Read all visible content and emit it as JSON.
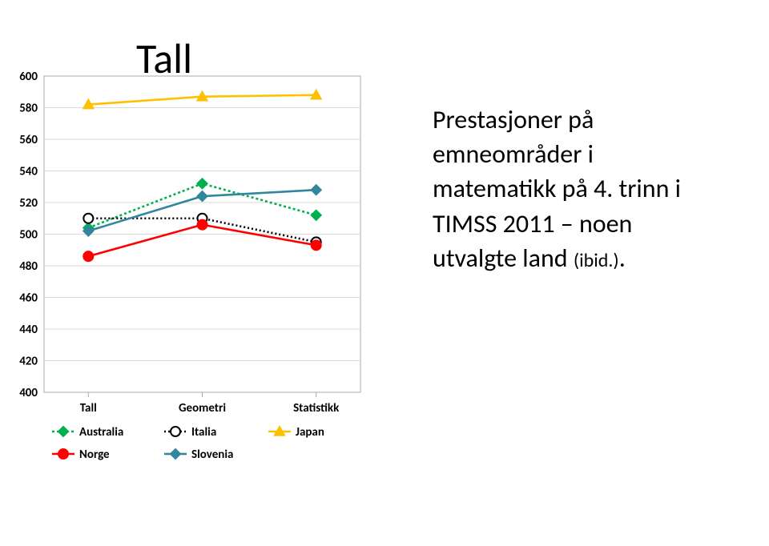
{
  "title": "Tall",
  "caption_line1": "Prestasjoner på",
  "caption_line2": "emneområder i",
  "caption_line3": "matematikk på 4. trinn i",
  "caption_line4": "TIMSS 2011 – noen",
  "caption_line5": "utvalgte land ",
  "caption_ibid": "(ibid.)",
  "caption_period": ".",
  "chart": {
    "type": "line",
    "background_color": "#ffffff",
    "plot_background_color": "#ffffff",
    "border_color": "#a9a9a9",
    "grid_color": "#d9d9d9",
    "axis_label_fontsize": 15,
    "axis_label_weight": "bold",
    "legend_fontsize": 15,
    "legend_weight": "bold",
    "categories": [
      "Tall",
      "Geometri",
      "Statistikk"
    ],
    "y": {
      "min": 400,
      "max": 600,
      "step": 20
    },
    "line_width": 2.6,
    "marker_size": 6,
    "series": [
      {
        "name": "Australia",
        "color": "#00b050",
        "marker": "diamond",
        "marker_fill": "#00b050",
        "dash": "3,3",
        "values": [
          504,
          532,
          512
        ]
      },
      {
        "name": "Italia",
        "color": "#000000",
        "marker": "circle",
        "marker_fill": "#ffffff",
        "dash": "2,3",
        "values": [
          510,
          510,
          495
        ]
      },
      {
        "name": "Japan",
        "color": "#ffc000",
        "marker": "triangle",
        "marker_fill": "#ffc000",
        "dash": "",
        "values": [
          582,
          587,
          588
        ]
      },
      {
        "name": "Norge",
        "color": "#ff0000",
        "marker": "circle",
        "marker_fill": "#ff0000",
        "dash": "",
        "values": [
          486,
          506,
          493
        ]
      },
      {
        "name": "Slovenia",
        "color": "#31859c",
        "marker": "diamond",
        "marker_fill": "#31859c",
        "dash": "",
        "values": [
          502,
          524,
          528
        ]
      }
    ]
  }
}
